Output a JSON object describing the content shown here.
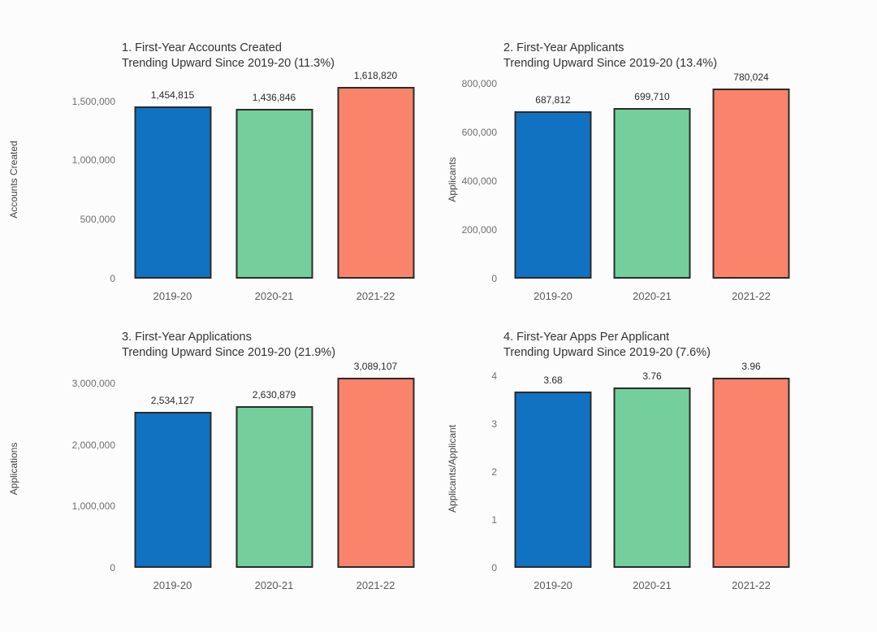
{
  "colors": {
    "series": [
      "#1172c2",
      "#75cf9c",
      "#f9836b"
    ],
    "bar_border": "#2b2b2b",
    "background": "#fcfcfc"
  },
  "chart_data": [
    {
      "type": "bar",
      "title_line1": "1. First-Year Accounts Created",
      "title_line2": "Trending Upward Since 2019-20 (11.3%)",
      "ylabel": "Accounts Created",
      "xlabel": "",
      "categories": [
        "2019-20",
        "2020-21",
        "2021-22"
      ],
      "values": [
        1454815,
        1436846,
        1618820
      ],
      "value_labels": [
        "1,454,815",
        "1,436,846",
        "1,618,820"
      ],
      "yticks": [
        0,
        500000,
        1000000,
        1500000
      ],
      "ytick_labels": [
        "0",
        "500,000",
        "1,000,000",
        "1,500,000"
      ],
      "ylim": [
        0,
        1680000
      ],
      "grid": false,
      "legend": "none"
    },
    {
      "type": "bar",
      "title_line1": "2. First-Year Applicants",
      "title_line2": "Trending Upward Since 2019-20 (13.4%)",
      "ylabel": "Applicants",
      "xlabel": "",
      "categories": [
        "2019-20",
        "2020-21",
        "2021-22"
      ],
      "values": [
        687812,
        699710,
        780024
      ],
      "value_labels": [
        "687,812",
        "699,710",
        "780,024"
      ],
      "yticks": [
        0,
        200000,
        400000,
        600000,
        800000
      ],
      "ytick_labels": [
        "0",
        "200,000",
        "400,000",
        "600,000",
        "800,000"
      ],
      "ylim": [
        0,
        815000
      ],
      "grid": false,
      "legend": "none"
    },
    {
      "type": "bar",
      "title_line1": "3. First-Year Applications",
      "title_line2": "Trending Upward Since 2019-20 (21.9%)",
      "ylabel": "Applications",
      "xlabel": "",
      "categories": [
        "2019-20",
        "2020-21",
        "2021-22"
      ],
      "values": [
        2534127,
        2630879,
        3089107
      ],
      "value_labels": [
        "2,534,127",
        "2,630,879",
        "3,089,107"
      ],
      "yticks": [
        0,
        1000000,
        2000000,
        3000000
      ],
      "ytick_labels": [
        "0",
        "1,000,000",
        "2,000,000",
        "3,000,000"
      ],
      "ylim": [
        0,
        3230000
      ],
      "grid": false,
      "legend": "none"
    },
    {
      "type": "bar",
      "title_line1": "4. First-Year Apps Per Applicant",
      "title_line2": "Trending Upward Since 2019-20 (7.6%)",
      "ylabel": "Applicants/Applicant",
      "xlabel": "",
      "categories": [
        "2019-20",
        "2020-21",
        "2021-22"
      ],
      "values": [
        3.68,
        3.76,
        3.96
      ],
      "value_labels": [
        "3.68",
        "3.76",
        "3.96"
      ],
      "yticks": [
        0,
        1,
        2,
        3,
        4
      ],
      "ytick_labels": [
        "0",
        "1",
        "2",
        "3",
        "4"
      ],
      "ylim": [
        0,
        4.15
      ],
      "grid": false,
      "legend": "none"
    }
  ]
}
